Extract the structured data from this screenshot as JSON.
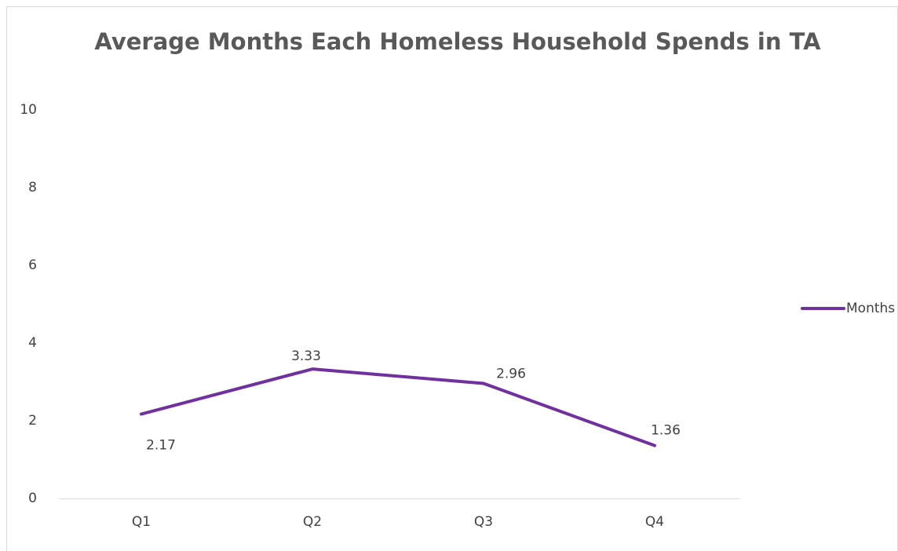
{
  "chart_data": {
    "type": "line",
    "title": "Average Months Each Homeless Household Spends in TA",
    "categories": [
      "Q1",
      "Q2",
      "Q3",
      "Q4"
    ],
    "series": [
      {
        "name": "Months",
        "color": "#7030a0",
        "values": [
          2.17,
          3.33,
          2.96,
          1.36
        ]
      }
    ],
    "ylim": [
      0,
      10
    ],
    "yticks": [
      0,
      2,
      4,
      6,
      8,
      10
    ],
    "grid": false,
    "legend": "right"
  }
}
